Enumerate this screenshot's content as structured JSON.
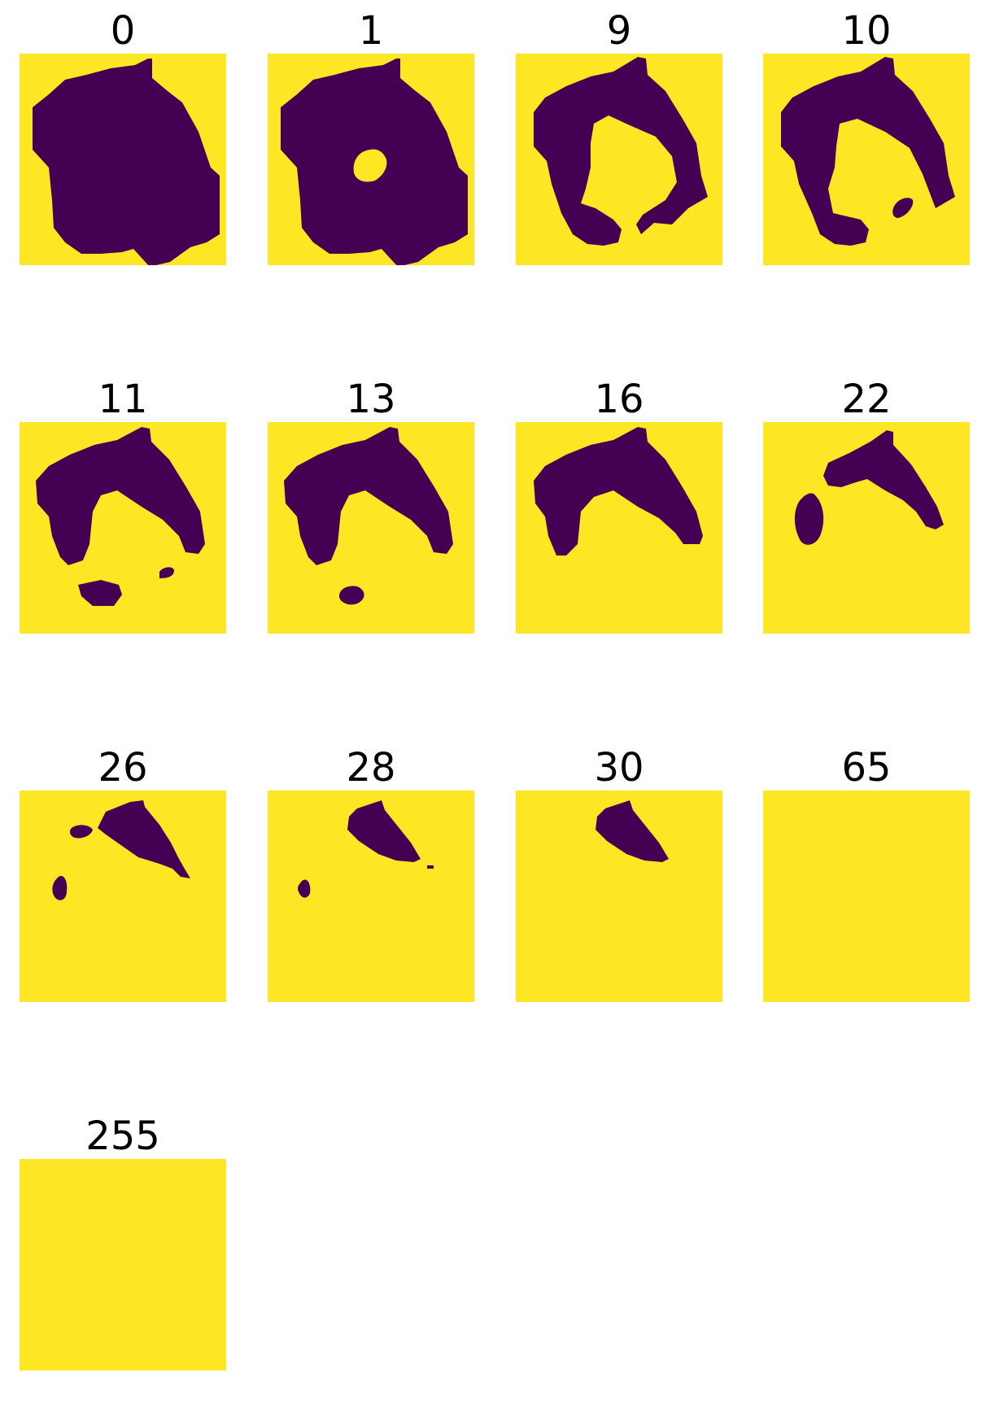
{
  "colors": {
    "background": "#fde725",
    "foreground": "#440154"
  },
  "panels": [
    {
      "label": "0",
      "shape": "blob-full"
    },
    {
      "label": "1",
      "shape": "blob-with-hole"
    },
    {
      "label": "9",
      "shape": "ring-open"
    },
    {
      "label": "10",
      "shape": "ring-open-separated"
    },
    {
      "label": "11",
      "shape": "arch-with-islands"
    },
    {
      "label": "13",
      "shape": "arch-with-one-island"
    },
    {
      "label": "16",
      "shape": "arch"
    },
    {
      "label": "22",
      "shape": "arch-split"
    },
    {
      "label": "26",
      "shape": "wedge-with-islands"
    },
    {
      "label": "28",
      "shape": "wedge-small-with-island"
    },
    {
      "label": "30",
      "shape": "wedge-tiny"
    },
    {
      "label": "65",
      "shape": "empty"
    },
    {
      "label": "255",
      "shape": "empty"
    }
  ]
}
